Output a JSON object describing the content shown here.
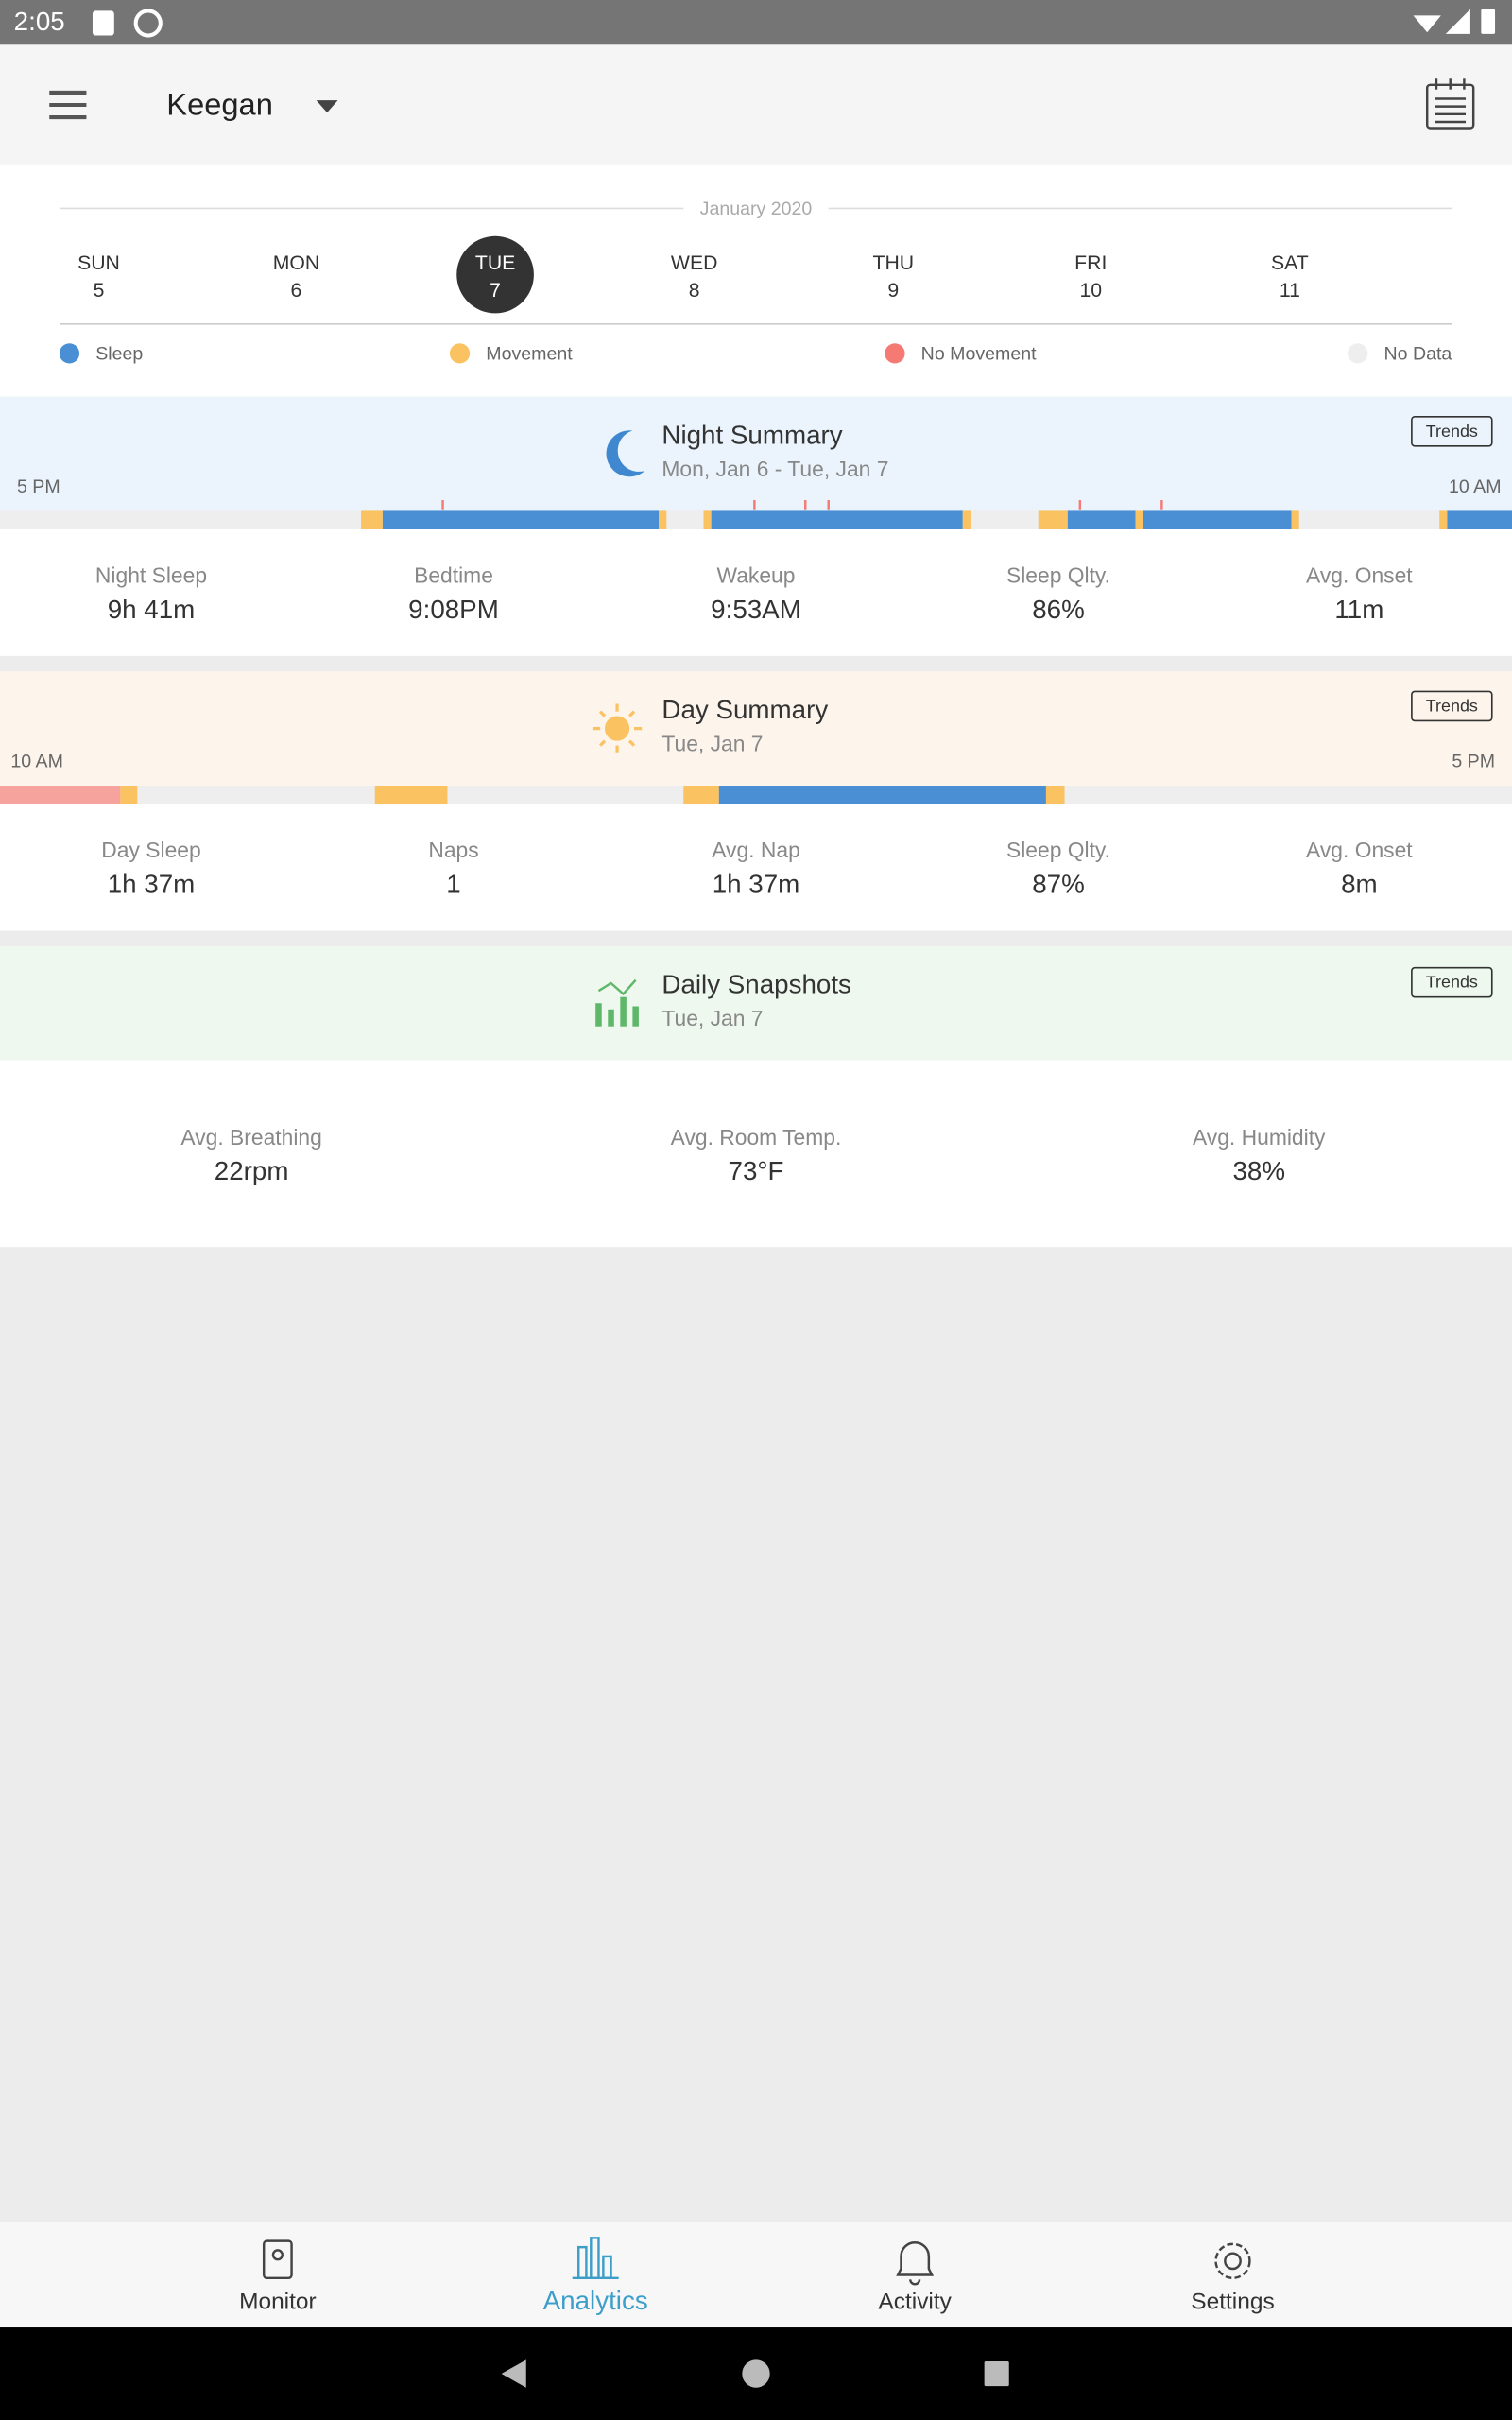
{
  "status_bar": {
    "time": "2:05"
  },
  "header": {
    "child_name": "Keegan"
  },
  "week": {
    "month": "January 2020",
    "selected_index": 2,
    "days": [
      {
        "name": "SUN",
        "date": "5"
      },
      {
        "name": "MON",
        "date": "6"
      },
      {
        "name": "TUE",
        "date": "7"
      },
      {
        "name": "WED",
        "date": "8"
      },
      {
        "name": "THU",
        "date": "9"
      },
      {
        "name": "FRI",
        "date": "10"
      },
      {
        "name": "SAT",
        "date": "11"
      }
    ]
  },
  "legend": [
    {
      "label": "Sleep",
      "color": "#4a8fd4"
    },
    {
      "label": "Movement",
      "color": "#fbc261"
    },
    {
      "label": "No Movement",
      "color": "#f47a73"
    },
    {
      "label": "No Data",
      "color": "#eeeeee"
    }
  ],
  "night_summary": {
    "title": "Night Summary",
    "subtitle": "Mon, Jan 6 - Tue, Jan 7",
    "trends": "Trends",
    "start_label": "5 PM",
    "end_label": "10 AM",
    "stats": [
      {
        "label": "Night Sleep",
        "value": "9h 41m"
      },
      {
        "label": "Bedtime",
        "value": "9:08PM"
      },
      {
        "label": "Wakeup",
        "value": "9:53AM"
      },
      {
        "label": "Sleep Qlty.",
        "value": "86%"
      },
      {
        "label": "Avg. Onset",
        "value": "11m"
      }
    ]
  },
  "day_summary": {
    "title": "Day Summary",
    "subtitle": "Tue, Jan 7",
    "trends": "Trends",
    "start_label": "10 AM",
    "end_label": "5 PM",
    "stats": [
      {
        "label": "Day Sleep",
        "value": "1h 37m"
      },
      {
        "label": "Naps",
        "value": "1"
      },
      {
        "label": "Avg. Nap",
        "value": "1h 37m"
      },
      {
        "label": "Sleep Qlty.",
        "value": "87%"
      },
      {
        "label": "Avg. Onset",
        "value": "8m"
      }
    ]
  },
  "daily_snapshots": {
    "title": "Daily Snapshots",
    "subtitle": "Tue, Jan 7",
    "trends": "Trends",
    "stats": [
      {
        "label": "Avg. Breathing",
        "value": "22rpm"
      },
      {
        "label": "Avg. Room Temp.",
        "value": "73°F"
      },
      {
        "label": "Avg. Humidity",
        "value": "38%"
      }
    ]
  },
  "nav": {
    "active_index": 1,
    "items": [
      "Monitor",
      "Analytics",
      "Activity",
      "Settings"
    ]
  }
}
